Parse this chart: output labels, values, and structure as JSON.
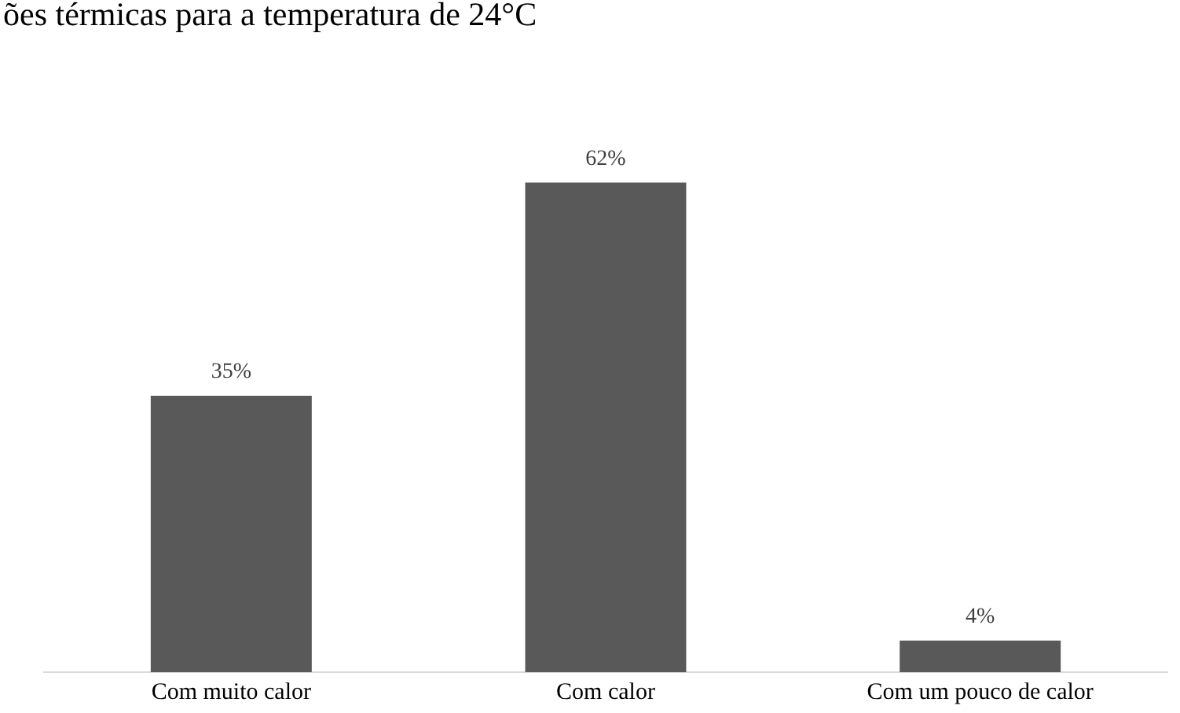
{
  "chart_data": {
    "type": "bar",
    "title": "ões térmicas para a temperatura de 24°C",
    "categories": [
      "Com muito calor",
      "Com calor",
      "Com um pouco de calor"
    ],
    "values": [
      35,
      62,
      4
    ],
    "value_labels": [
      "35%",
      "62%",
      "4%"
    ],
    "color": "#595959",
    "tick_labels": "x",
    "legend": false
  }
}
